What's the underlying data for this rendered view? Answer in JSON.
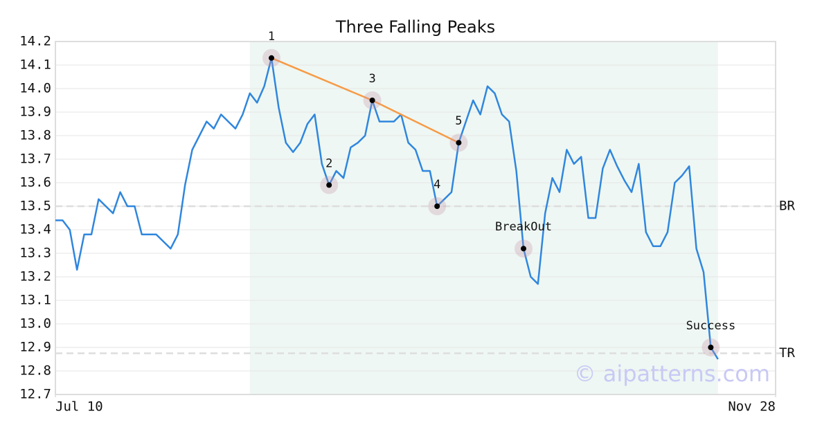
{
  "chart_data": {
    "type": "line",
    "title": "Three Falling Peaks",
    "xlim": [
      0,
      100
    ],
    "xticks": [
      {
        "value": 0,
        "label": "Jul 10"
      },
      {
        "value": 100,
        "label": "Nov 28"
      }
    ],
    "ylim": [
      12.7,
      14.2
    ],
    "yticks": [
      12.7,
      12.8,
      12.9,
      {
        "value": 13,
        "label": "13.0"
      },
      13.1,
      13.2,
      13.3,
      13.4,
      13.5,
      13.6,
      13.7,
      13.8,
      13.9,
      {
        "value": 14,
        "label": "14.0"
      },
      14.1,
      14.2
    ],
    "grid": true,
    "color": "#2f86de",
    "values": [
      13.44,
      13.44,
      13.4,
      13.23,
      13.38,
      13.38,
      13.53,
      13.5,
      13.47,
      13.56,
      13.5,
      13.5,
      13.38,
      13.38,
      13.38,
      13.35,
      13.32,
      13.38,
      13.59,
      13.74,
      13.8,
      13.86,
      13.83,
      13.89,
      13.86,
      13.83,
      13.89,
      13.98,
      13.94,
      14.01,
      14.13,
      13.92,
      13.77,
      13.73,
      13.77,
      13.85,
      13.89,
      13.68,
      13.59,
      13.65,
      13.62,
      13.75,
      13.77,
      13.8,
      13.95,
      13.86,
      13.86,
      13.86,
      13.89,
      13.77,
      13.74,
      13.65,
      13.65,
      13.5,
      13.53,
      13.56,
      13.77,
      13.86,
      13.95,
      13.89,
      14.01,
      13.98,
      13.89,
      13.86,
      13.65,
      13.32,
      13.2,
      13.17,
      13.47,
      13.62,
      13.56,
      13.74,
      13.68,
      13.71,
      13.45,
      13.45,
      13.66,
      13.74,
      13.67,
      13.61,
      13.56,
      13.68,
      13.39,
      13.33,
      13.33,
      13.39,
      13.6,
      13.63,
      13.67,
      13.32,
      13.22,
      12.9,
      12.85
    ],
    "highlight": {
      "xlim": [
        27,
        92
      ],
      "color": "#eef7f3"
    },
    "hlines": [
      {
        "value": 13.5,
        "label": "BR"
      },
      {
        "value": 12.875,
        "label": "TR"
      }
    ],
    "trend_line": {
      "x": [
        30,
        44,
        56
      ],
      "values": [
        14.13,
        13.95,
        13.77
      ],
      "color": "#f79a45"
    },
    "annotations": [
      {
        "x": 30,
        "value": 14.13,
        "label": "1"
      },
      {
        "x": 38,
        "value": 13.59,
        "label": "2"
      },
      {
        "x": 44,
        "value": 13.95,
        "label": "3"
      },
      {
        "x": 53,
        "value": 13.5,
        "label": "4"
      },
      {
        "x": 56,
        "value": 13.77,
        "label": "5"
      },
      {
        "x": 65,
        "value": 13.32,
        "label": "BreakOut"
      },
      {
        "x": 91,
        "value": 12.9,
        "label": "Success"
      }
    ],
    "watermark": "© aipatterns.com"
  }
}
